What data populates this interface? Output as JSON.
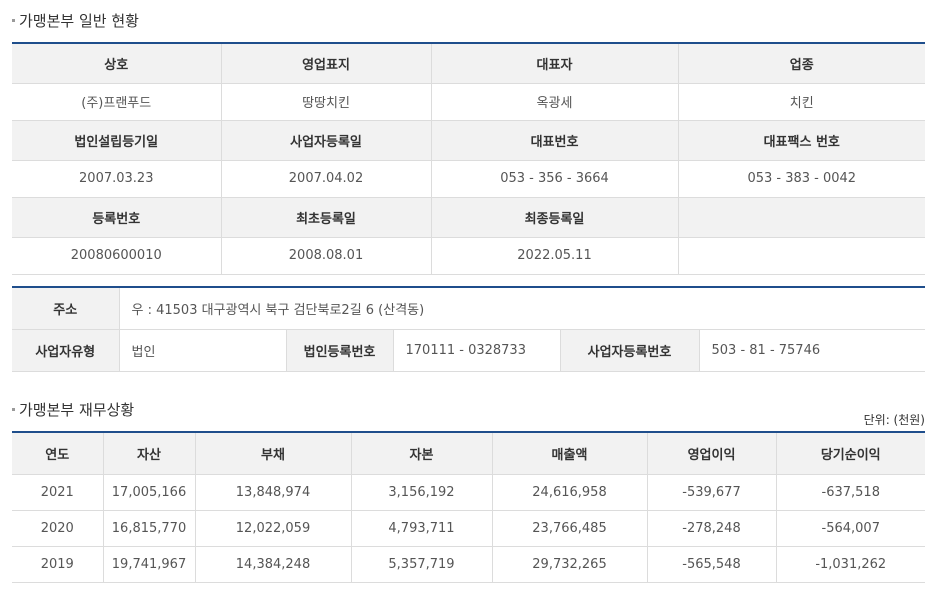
{
  "general": {
    "title": "가맹본부 일반 현황",
    "headers1": [
      "상호",
      "영업표지",
      "대표자",
      "업종"
    ],
    "values1": [
      "(주)프랜푸드",
      "땅땅치킨",
      "옥광세",
      "치킨"
    ],
    "headers2": [
      "법인설립등기일",
      "사업자등록일",
      "대표번호",
      "대표팩스 번호"
    ],
    "values2": [
      "2007.03.23",
      "2007.04.02",
      "053 - 356 - 3664",
      "053 - 383 - 0042"
    ],
    "headers3": [
      "등록번호",
      "최초등록일",
      "최종등록일",
      ""
    ],
    "values3": [
      "20080600010",
      "2008.08.01",
      "2022.05.11",
      ""
    ]
  },
  "address": {
    "label": "주소",
    "value": "우 : 41503 대구광역시 북구 검단북로2길 6 (산격동)",
    "biz_type_label": "사업자유형",
    "biz_type_value": "법인",
    "corp_no_label": "법인등록번호",
    "corp_no_value": "170111 - 0328733",
    "biz_no_label": "사업자등록번호",
    "biz_no_value": "503 - 81 - 75746"
  },
  "finance": {
    "title": "가맹본부 재무상황",
    "unit": "단위: (천원)",
    "headers": [
      "연도",
      "자산",
      "부채",
      "자본",
      "매출액",
      "영업이익",
      "당기순이익"
    ],
    "rows": [
      [
        "2021",
        "17,005,166",
        "13,848,974",
        "3,156,192",
        "24,616,958",
        "-539,677",
        "-637,518"
      ],
      [
        "2020",
        "16,815,770",
        "12,022,059",
        "4,793,711",
        "23,766,485",
        "-278,248",
        "-564,007"
      ],
      [
        "2019",
        "19,741,967",
        "14,384,248",
        "5,357,719",
        "29,732,265",
        "-565,548",
        "-1,031,262"
      ]
    ]
  }
}
